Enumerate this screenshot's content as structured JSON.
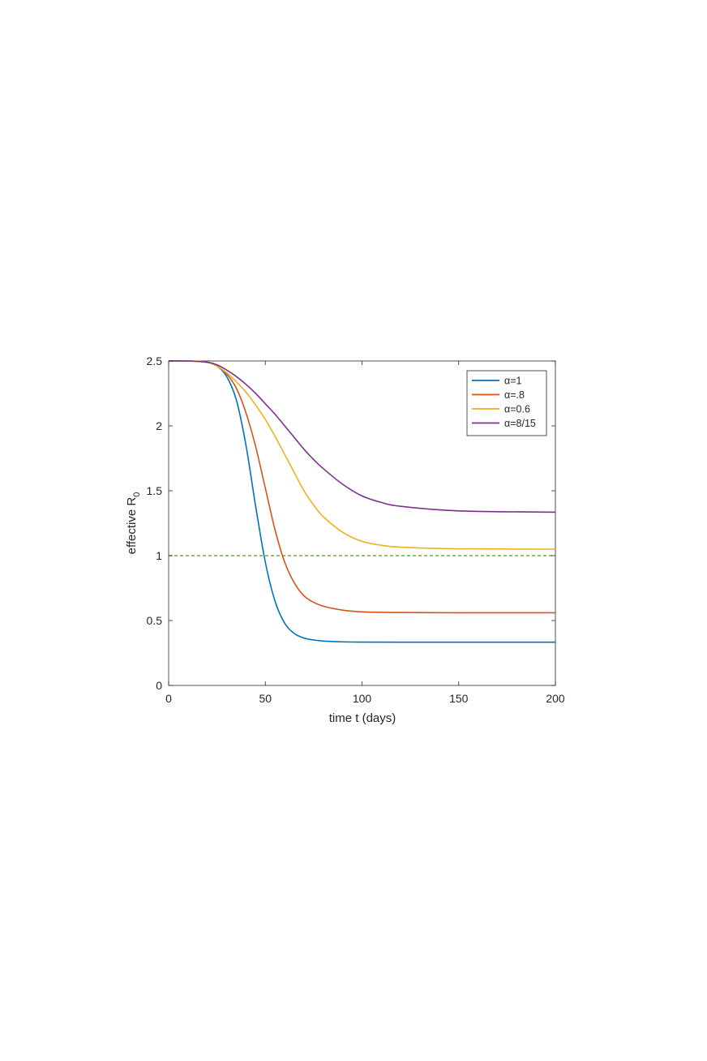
{
  "chart_data": {
    "type": "line",
    "title": "",
    "xlabel": "time t (days)",
    "ylabel": "effective R",
    "ylabel_subscript": "0",
    "xlim": [
      0,
      200
    ],
    "ylim": [
      0,
      2.5
    ],
    "xticks": [
      0,
      50,
      100,
      150,
      200
    ],
    "yticks": [
      0,
      0.5,
      1,
      1.5,
      2,
      2.5
    ],
    "xtick_labels": [
      "0",
      "50",
      "100",
      "150",
      "200"
    ],
    "ytick_labels": [
      "0",
      "0.5",
      "1",
      "1.5",
      "2",
      "2.5"
    ],
    "grid": false,
    "legend_position": "top-right",
    "series": [
      {
        "name": "α=1",
        "color": "#0072BD",
        "x": [
          0,
          10,
          20,
          25,
          30,
          35,
          40,
          45,
          50,
          55,
          60,
          65,
          70,
          75,
          80,
          90,
          100,
          120,
          150,
          200
        ],
        "y": [
          2.5,
          2.5,
          2.49,
          2.46,
          2.38,
          2.2,
          1.85,
          1.38,
          0.95,
          0.65,
          0.48,
          0.4,
          0.365,
          0.35,
          0.342,
          0.336,
          0.334,
          0.333,
          0.333,
          0.333
        ]
      },
      {
        "name": "α=.8",
        "color": "#D95319",
        "x": [
          0,
          10,
          20,
          25,
          30,
          35,
          40,
          45,
          50,
          55,
          60,
          65,
          70,
          75,
          80,
          90,
          100,
          120,
          150,
          200
        ],
        "y": [
          2.5,
          2.5,
          2.49,
          2.46,
          2.4,
          2.29,
          2.1,
          1.84,
          1.52,
          1.2,
          0.95,
          0.79,
          0.69,
          0.64,
          0.61,
          0.58,
          0.567,
          0.562,
          0.56,
          0.56
        ]
      },
      {
        "name": "α=0.6",
        "color": "#EDB120",
        "x": [
          0,
          10,
          20,
          25,
          30,
          35,
          40,
          45,
          50,
          55,
          60,
          65,
          70,
          75,
          80,
          90,
          100,
          110,
          120,
          150,
          200
        ],
        "y": [
          2.5,
          2.5,
          2.49,
          2.46,
          2.41,
          2.34,
          2.26,
          2.16,
          2.05,
          1.92,
          1.78,
          1.64,
          1.5,
          1.39,
          1.3,
          1.18,
          1.11,
          1.08,
          1.065,
          1.053,
          1.05
        ]
      },
      {
        "name": "α=8/15",
        "color": "#7E2F8E",
        "x": [
          0,
          10,
          20,
          25,
          30,
          35,
          40,
          45,
          50,
          55,
          60,
          65,
          70,
          75,
          80,
          90,
          100,
          110,
          120,
          150,
          200
        ],
        "y": [
          2.5,
          2.5,
          2.49,
          2.47,
          2.43,
          2.38,
          2.32,
          2.25,
          2.17,
          2.09,
          2.0,
          1.91,
          1.82,
          1.74,
          1.67,
          1.55,
          1.46,
          1.41,
          1.38,
          1.345,
          1.335
        ]
      }
    ],
    "reference_line": {
      "y": 1,
      "color": "#77AC30",
      "style": "dashed"
    }
  }
}
